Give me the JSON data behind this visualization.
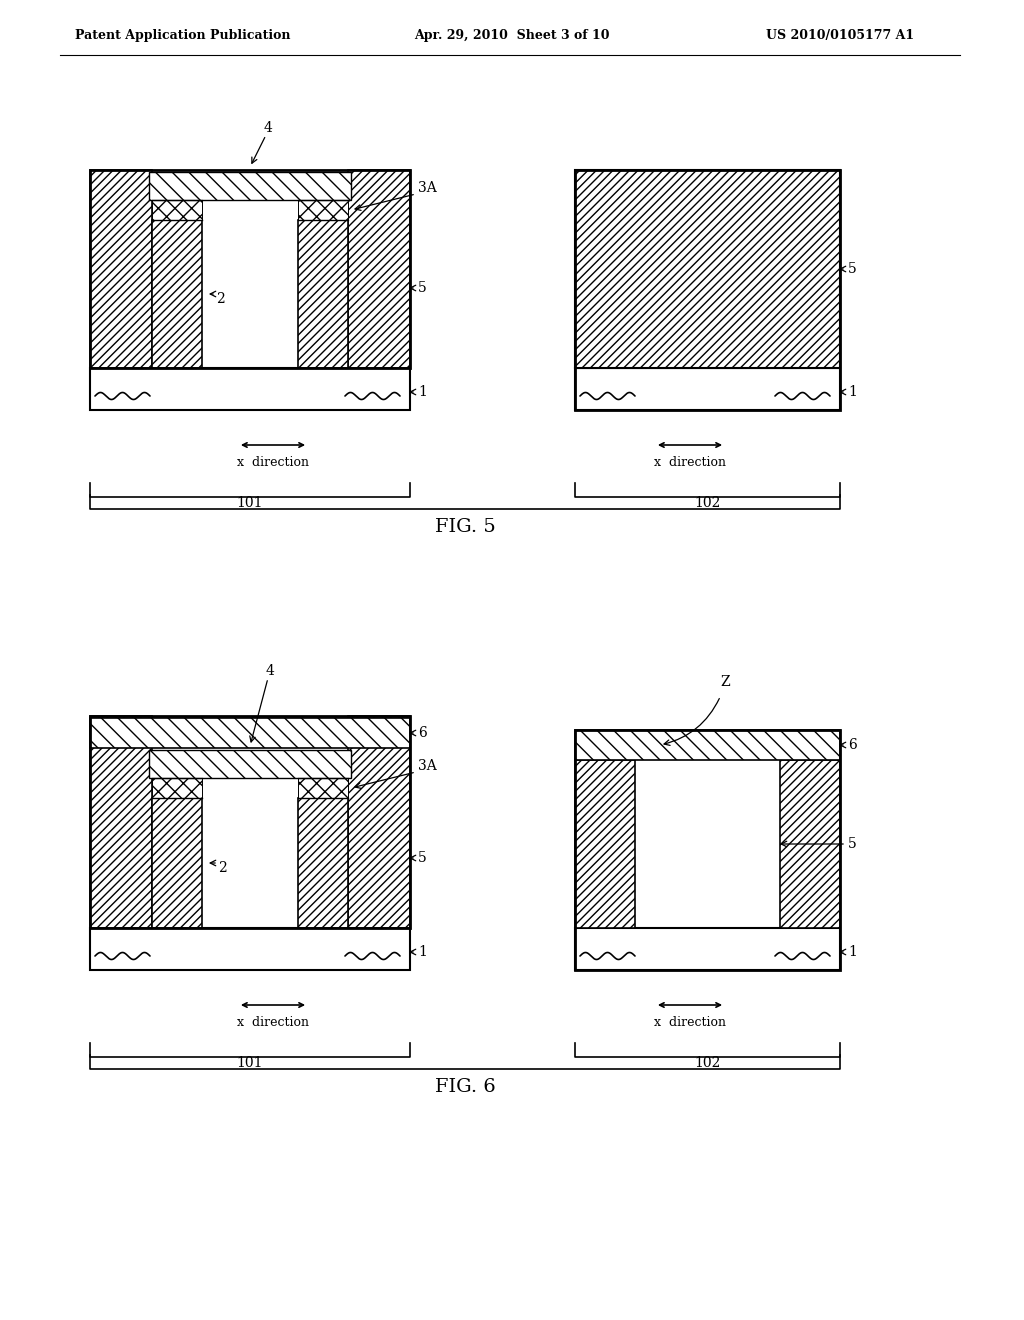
{
  "bg_color": "#ffffff",
  "header_left": "Patent Application Publication",
  "header_mid": "Apr. 29, 2010  Sheet 3 of 10",
  "header_right": "US 2010/0105177 A1",
  "fig5_label": "FIG. 5",
  "fig6_label": "FIG. 6"
}
